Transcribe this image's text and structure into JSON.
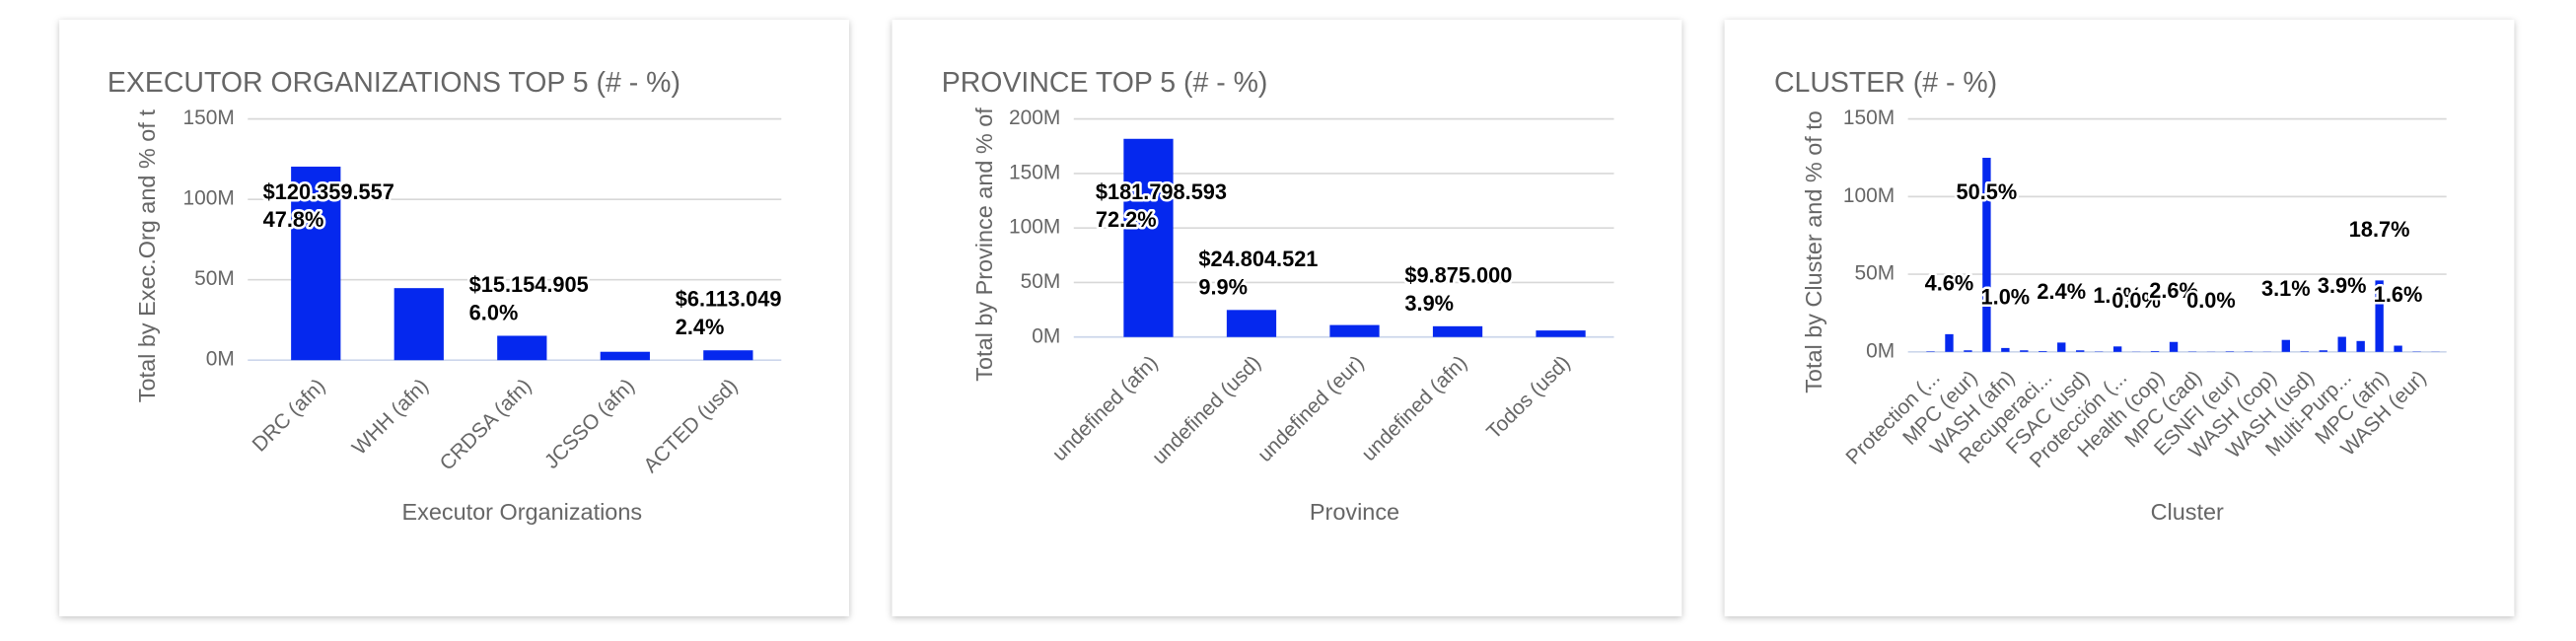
{
  "chart_data": [
    {
      "type": "bar",
      "title": "EXECUTOR ORGANIZATIONS TOP 5 (# - %)",
      "y_label": "Total by Exec.Org and % of t",
      "x_label": "Executor Organizations",
      "categories": [
        "DRC (afn)",
        "WHH (afn)",
        "CRDSA (afn)",
        "JCSSO (afn)",
        "ACTED (usd)"
      ],
      "values": [
        120359557,
        44800000,
        15154905,
        5200000,
        6113049
      ],
      "value_labels": [
        "$120.359.557",
        null,
        "$15.154.905",
        null,
        "$6.113.049"
      ],
      "percent_labels": [
        "47.8%",
        null,
        "6.0%",
        null,
        "2.4%"
      ],
      "color": "#0528ee",
      "ylim": [
        0,
        150000000
      ],
      "yticks": [
        {
          "value": 0,
          "label": "0M"
        },
        {
          "value": 50000000,
          "label": "50M"
        },
        {
          "value": 100000000,
          "label": "100M"
        },
        {
          "value": 150000000,
          "label": "150M"
        }
      ],
      "grid": true
    },
    {
      "type": "bar",
      "title": "PROVINCE TOP 5 (# - %)",
      "y_label": "Total by Province and % of",
      "x_label": "Province",
      "categories": [
        "undefined (afn)",
        "undefined (usd)",
        "undefined (eur)",
        "undefined (afn)",
        "Todos (usd)"
      ],
      "values": [
        181798593,
        24804521,
        11000000,
        9875000,
        6000000
      ],
      "value_labels": [
        "$181.798.593",
        "$24.804.521",
        null,
        "$9.875.000",
        null
      ],
      "percent_labels": [
        "72.2%",
        "9.9%",
        null,
        "3.9%",
        null
      ],
      "color": "#0528ee",
      "ylim": [
        0,
        200000000
      ],
      "yticks": [
        {
          "value": 0,
          "label": "0M"
        },
        {
          "value": 50000000,
          "label": "50M"
        },
        {
          "value": 100000000,
          "label": "100M"
        },
        {
          "value": 150000000,
          "label": "150M"
        },
        {
          "value": 200000000,
          "label": "200M"
        }
      ],
      "grid": true
    },
    {
      "type": "bar",
      "title": "CLUSTER (# - %)",
      "y_label": "Total by Cluster and % of to",
      "x_label": "Cluster",
      "categories": [
        "Protection (...",
        null,
        "MPC (eur)",
        null,
        "WASH (afn)",
        null,
        "Recuperaci...",
        null,
        "FSAC (usd)",
        null,
        "Protección (...",
        null,
        "Health (cop)",
        null,
        "MPC (cad)",
        null,
        "ESNFI (eur)",
        null,
        "WASH (cop)",
        null,
        "WASH (usd)",
        null,
        "Multi-Purp...",
        null,
        "MPC (afn)",
        null,
        "WASH (eur)",
        null
      ],
      "values": [
        300000,
        11400000,
        1000000,
        125000000,
        2500000,
        1000000,
        500000,
        6000000,
        1000000,
        200000,
        3500000,
        100000,
        500000,
        6400000,
        200000,
        100000,
        300000,
        200000,
        100000,
        7700000,
        300000,
        1000000,
        9700000,
        7000000,
        46000000,
        4000000,
        200000,
        100000
      ],
      "percent_labels": [
        null,
        "4.6%",
        null,
        "50.5%",
        "1.0%",
        null,
        null,
        "2.4%",
        null,
        null,
        "1.4%",
        "0.0%",
        null,
        "2.6%",
        null,
        "0.0%",
        null,
        null,
        null,
        "3.1%",
        null,
        null,
        "3.9%",
        null,
        "18.7%",
        "1.6%",
        null,
        null
      ],
      "color": "#0528ee",
      "ylim": [
        0,
        150000000
      ],
      "yticks": [
        {
          "value": 0,
          "label": "0M"
        },
        {
          "value": 50000000,
          "label": "50M"
        },
        {
          "value": 100000000,
          "label": "100M"
        },
        {
          "value": 150000000,
          "label": "150M"
        }
      ],
      "grid": true
    }
  ]
}
